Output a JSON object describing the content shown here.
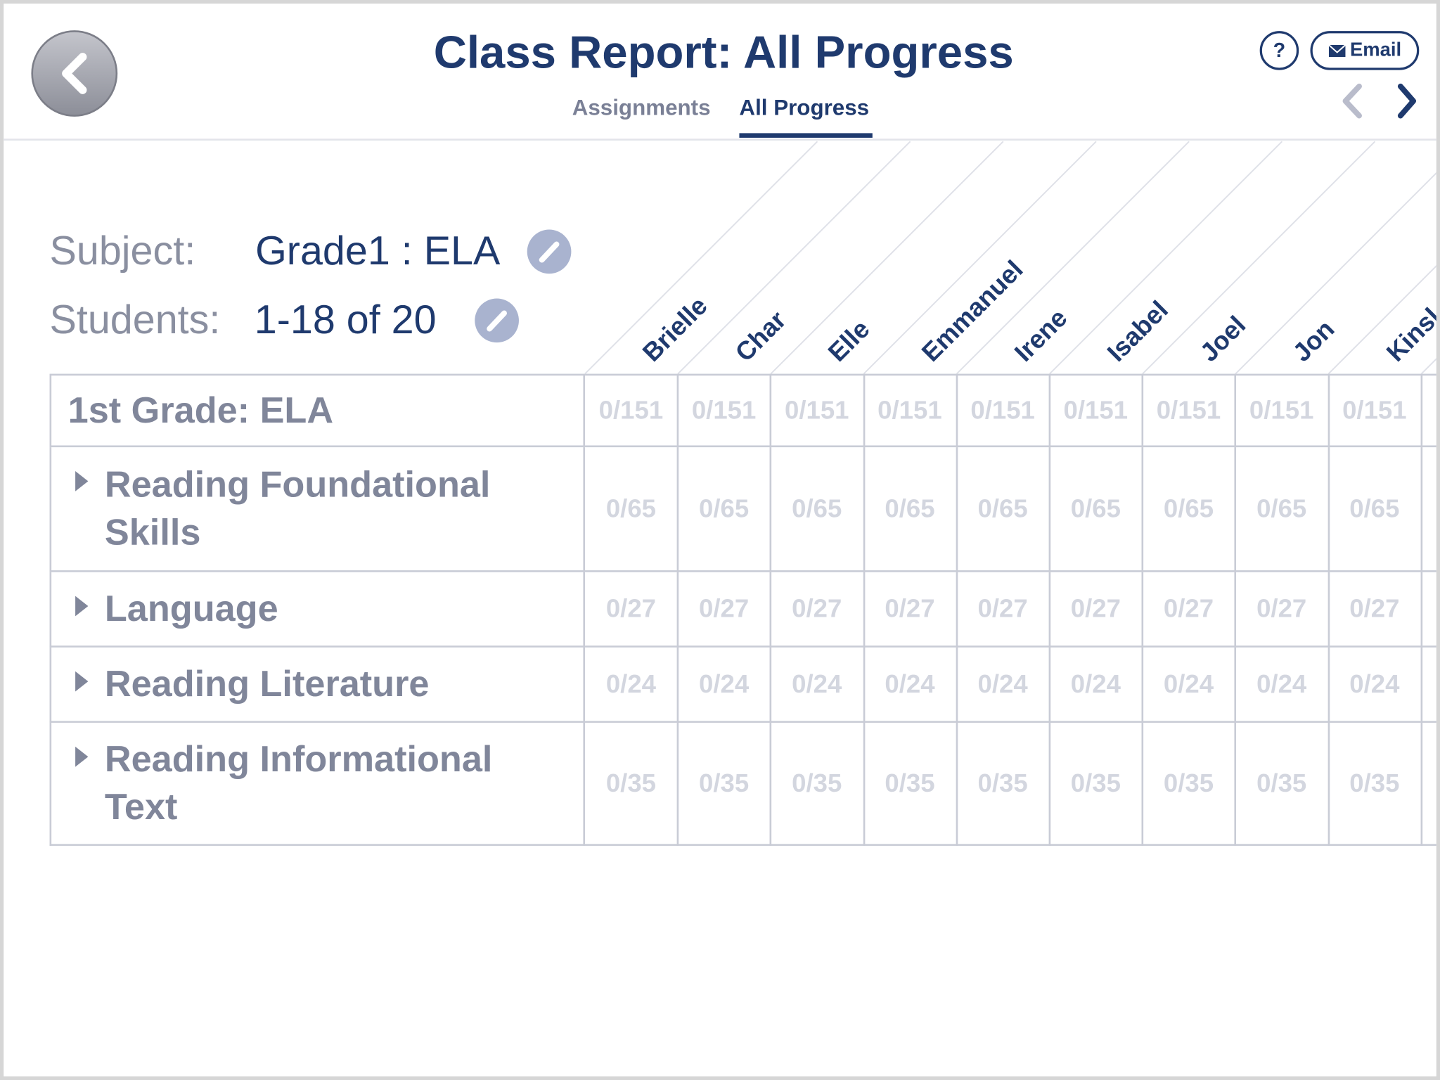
{
  "header": {
    "title": "Class Report: All Progress",
    "tabs": [
      "Assignments",
      "All Progress"
    ],
    "help": "?",
    "email": "Email"
  },
  "filters": {
    "subject_label": "Subject:",
    "subject": "Grade1 : ELA",
    "students_label": "Students:",
    "students": "1-18 of 20"
  },
  "table": {
    "columns": [
      "Brielle",
      "Char",
      "Elle",
      "Emmanuel",
      "Irene",
      "Isabel",
      "Joel",
      "Jon",
      "Kinsl"
    ],
    "rows": [
      {
        "label": "1st Grade: ELA",
        "cells": [
          "0/151",
          "0/151",
          "0/151",
          "0/151",
          "0/151",
          "0/151",
          "0/151",
          "0/151",
          "0/151"
        ]
      },
      {
        "label": "Reading Foundational Skills",
        "cells": [
          "0/65",
          "0/65",
          "0/65",
          "0/65",
          "0/65",
          "0/65",
          "0/65",
          "0/65",
          "0/65"
        ]
      },
      {
        "label": "Language",
        "cells": [
          "0/27",
          "0/27",
          "0/27",
          "0/27",
          "0/27",
          "0/27",
          "0/27",
          "0/27",
          "0/27"
        ]
      },
      {
        "label": "Reading Literature",
        "cells": [
          "0/24",
          "0/24",
          "0/24",
          "0/24",
          "0/24",
          "0/24",
          "0/24",
          "0/24",
          "0/24"
        ]
      },
      {
        "label": "Reading Informational Text",
        "cells": [
          "0/35",
          "0/35",
          "0/35",
          "0/35",
          "0/35",
          "0/35",
          "0/35",
          "0/35",
          "0/35"
        ]
      }
    ]
  }
}
